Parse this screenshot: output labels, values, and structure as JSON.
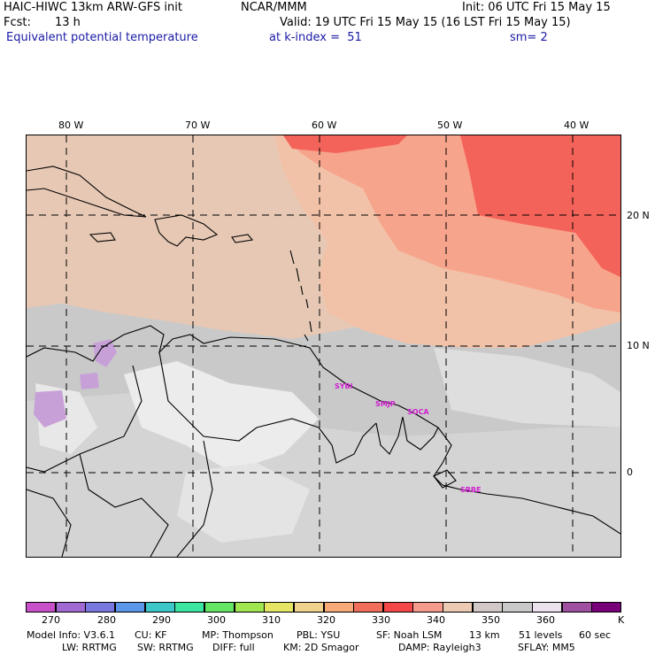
{
  "header": {
    "model_title": "HAIC-HIWC 13km ARW-GFS init",
    "org": "NCAR/MMM",
    "init": "Init: 06 UTC Fri 15 May 15",
    "fcst_label": "Fcst:",
    "fcst_value": "13 h",
    "valid": "Valid: 19 UTC Fri 15 May 15 (16 LST Fri 15 May 15)",
    "field": "Equivalent potential temperature",
    "level": "at k-index =  51",
    "smoothing": "sm= 2"
  },
  "map": {
    "lon_labels": [
      "80 W",
      "70 W",
      "60 W",
      "50 W",
      "40 W"
    ],
    "lat_labels": [
      "20 N",
      "10 N",
      "0"
    ],
    "stations": [
      "SYBI",
      "SMJP",
      "SOCA",
      "SBBE"
    ],
    "colors": {
      "background_gray": "#c9c9c9",
      "light_gray": "#d9d9d9",
      "white_patch": "#f0f0f0",
      "tan": "#e6c8b4",
      "peach": "#f2c2a8",
      "salmon": "#f7a48c",
      "red": "#f4635a",
      "purple": "#c8a0d8"
    }
  },
  "colorbar": {
    "labels": [
      "270",
      "280",
      "290",
      "300",
      "310",
      "320",
      "330",
      "340",
      "350",
      "360"
    ],
    "unit": "K",
    "colors": [
      "#c850c8",
      "#a06ad2",
      "#7878e0",
      "#5a96ea",
      "#3cc8c8",
      "#3ce6a0",
      "#64e664",
      "#a0e650",
      "#e6e664",
      "#f0d28c",
      "#f5aa78",
      "#f06e5a",
      "#f44848",
      "#f59a8c",
      "#eccab4",
      "#d2c8c8",
      "#c9c9c9",
      "#ece2ee",
      "#a050a0",
      "#780078"
    ]
  },
  "footer": {
    "line1": [
      "Model Info: V3.6.1",
      "CU: KF",
      "MP: Thompson",
      "PBL: YSU",
      "SF: Noah LSM",
      "13 km",
      "51 levels",
      "60 sec"
    ],
    "line2": [
      "LW: RRTMG",
      "SW: RRTMG",
      "DIFF: full",
      "KM: 2D Smagor",
      "DAMP: Rayleigh3",
      "SFLAY: MM5"
    ]
  }
}
